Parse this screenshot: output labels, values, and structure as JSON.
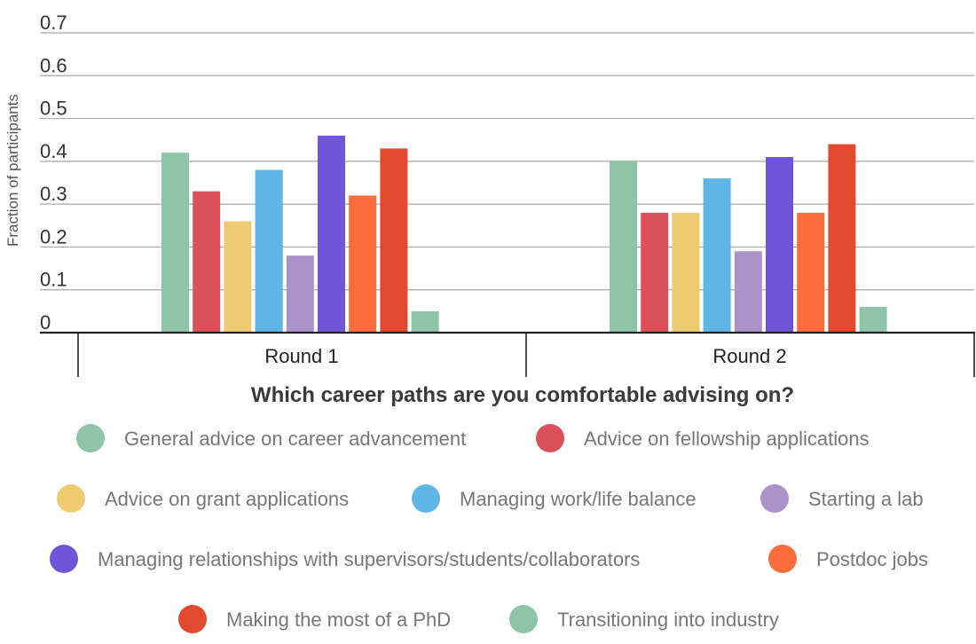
{
  "chart_data": {
    "type": "bar",
    "categories": [
      "Round 1",
      "Round 2"
    ],
    "xlabel": "Which career paths are you comfortable advising on?",
    "ylabel": "Fraction of participants",
    "ylim": [
      0,
      0.7
    ],
    "yticks": [
      "0",
      "0.1",
      "0.2",
      "0.3",
      "0.4",
      "0.5",
      "0.6",
      "0.7"
    ],
    "grid": true,
    "legend_position": "bottom",
    "series": [
      {
        "name": "General advice on career advancement",
        "color": "#8fc4a8",
        "values": [
          0.42,
          0.4
        ]
      },
      {
        "name": "Advice on fellowship applications",
        "color": "#dc5159",
        "values": [
          0.33,
          0.28
        ]
      },
      {
        "name": "Advice on grant applications",
        "color": "#eecb71",
        "values": [
          0.26,
          0.28
        ]
      },
      {
        "name": "Managing work/life balance",
        "color": "#5fb5e6",
        "values": [
          0.38,
          0.36
        ]
      },
      {
        "name": "Starting a lab",
        "color": "#a993c8",
        "values": [
          0.18,
          0.19
        ]
      },
      {
        "name": "Managing relationships with supervisors/students/collaborators",
        "color": "#6f56d9",
        "values": [
          0.46,
          0.41
        ]
      },
      {
        "name": "Postdoc jobs",
        "color": "#fb6d3d",
        "values": [
          0.32,
          0.28
        ]
      },
      {
        "name": "Making the most of a PhD",
        "color": "#e2492e",
        "values": [
          0.43,
          0.44
        ]
      },
      {
        "name": "Transitioning into industry",
        "color": "#8fc4a8",
        "values": [
          0.05,
          0.06
        ]
      }
    ]
  }
}
